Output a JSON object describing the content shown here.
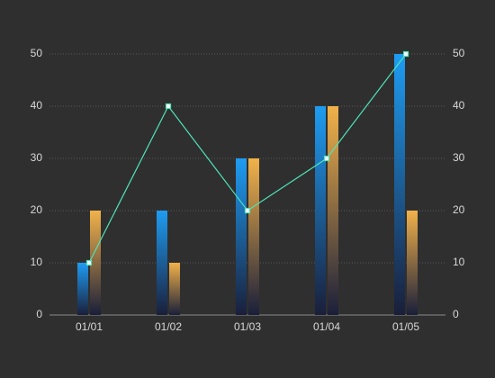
{
  "chart_data": {
    "type": "bar",
    "categories": [
      "01/01",
      "01/02",
      "01/03",
      "01/04",
      "01/05"
    ],
    "series": [
      {
        "type": "bar",
        "color": "#1e9cf2",
        "values": [
          10,
          20,
          30,
          40,
          50
        ]
      },
      {
        "type": "bar",
        "color": "#f2b24a",
        "values": [
          20,
          10,
          30,
          40,
          20
        ]
      },
      {
        "type": "line",
        "color": "#4fe3b8",
        "axis": "y2",
        "values": [
          10,
          40,
          20,
          30,
          50
        ]
      }
    ],
    "ylim": [
      0,
      50
    ],
    "yticks": [
      0,
      10,
      20,
      30,
      40,
      50
    ],
    "y2lim": [
      0,
      50
    ],
    "y2ticks": [
      0,
      10,
      20,
      30,
      40,
      50
    ],
    "grid": true
  }
}
